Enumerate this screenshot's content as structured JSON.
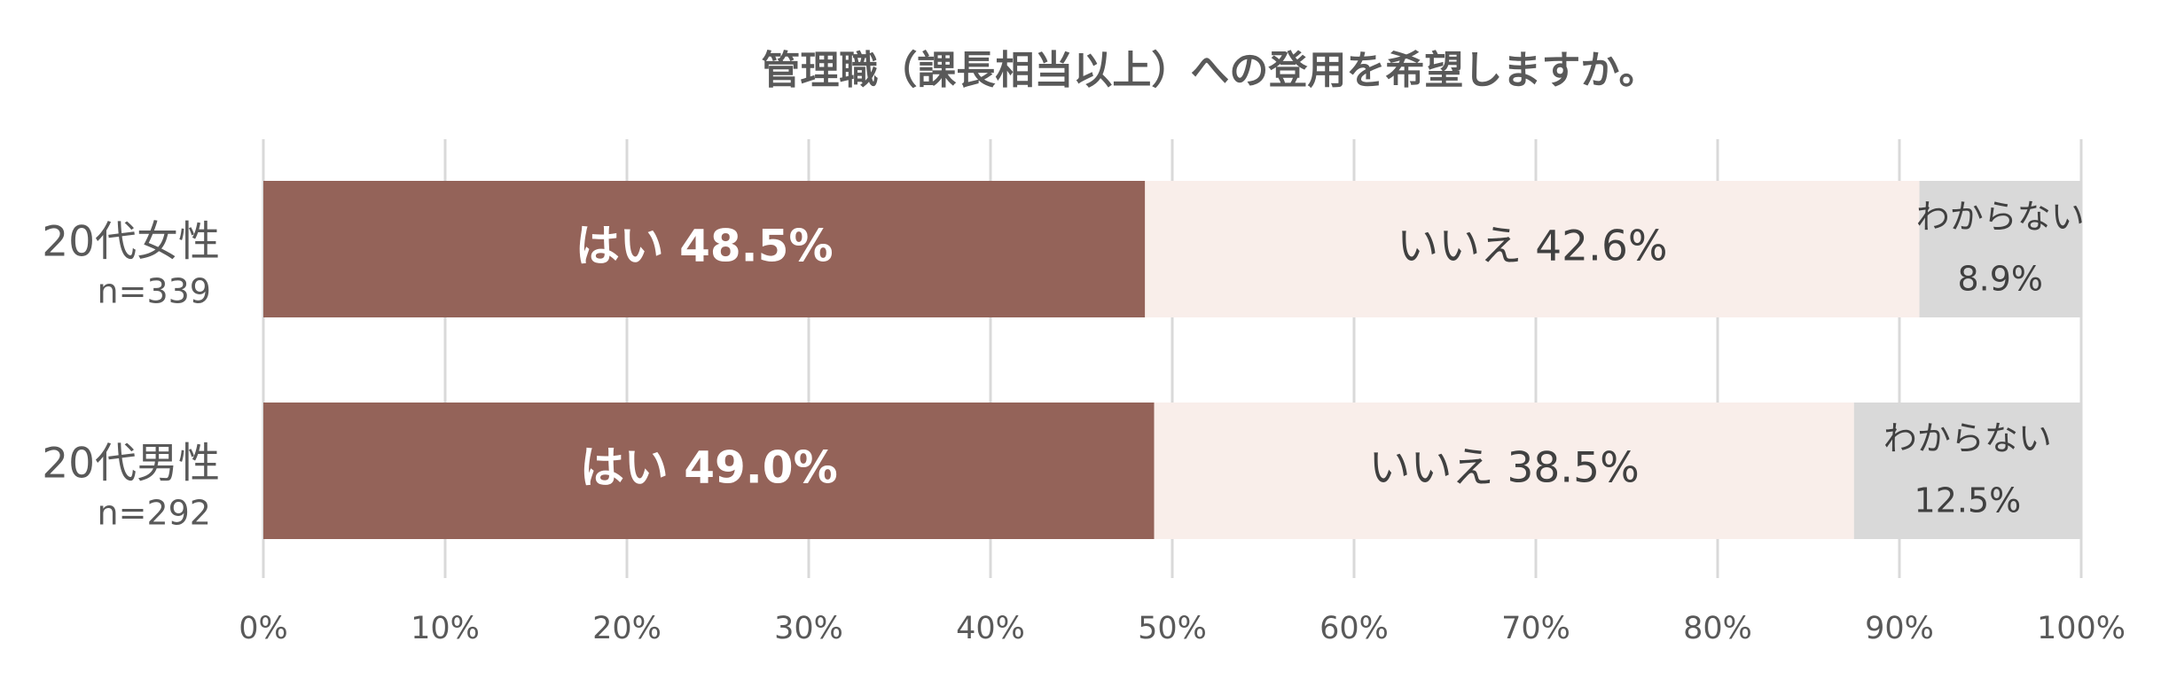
{
  "chart_data": {
    "type": "stacked-bar-horizontal",
    "title": "管理職（課長相当以上）への登用を希望しますか。",
    "categories": [
      [
        "20代女性",
        "n=339"
      ],
      [
        "20代男性",
        "n=292"
      ]
    ],
    "series": [
      {
        "color": "#946359",
        "label_color": "#ffffff",
        "values": [
          48.5,
          49.0
        ],
        "value_labels": [
          "はい 48.5%",
          "はい 49.0%"
        ]
      },
      {
        "color": "#f9eeea",
        "label_color": "#404040",
        "values": [
          42.6,
          38.5
        ],
        "value_labels": [
          "いいえ 42.6%",
          "いいえ 38.5%"
        ]
      },
      {
        "color": "#d9d9d9",
        "label_color": "#404040",
        "values": [
          8.9,
          12.5
        ],
        "value_labels": [
          [
            "わからない",
            "8.9%"
          ],
          [
            "わからない",
            "12.5%"
          ]
        ]
      }
    ],
    "xlim": [
      0,
      100
    ],
    "xticks": [
      {
        "value": 0,
        "label": "0%"
      },
      {
        "value": 10,
        "label": "10%"
      },
      {
        "value": 20,
        "label": "20%"
      },
      {
        "value": 30,
        "label": "30%"
      },
      {
        "value": 40,
        "label": "40%"
      },
      {
        "value": 50,
        "label": "50%"
      },
      {
        "value": 60,
        "label": "60%"
      },
      {
        "value": 70,
        "label": "70%"
      },
      {
        "value": 80,
        "label": "80%"
      },
      {
        "value": 90,
        "label": "90%"
      },
      {
        "value": 100,
        "label": "100%"
      }
    ],
    "grid": true
  }
}
